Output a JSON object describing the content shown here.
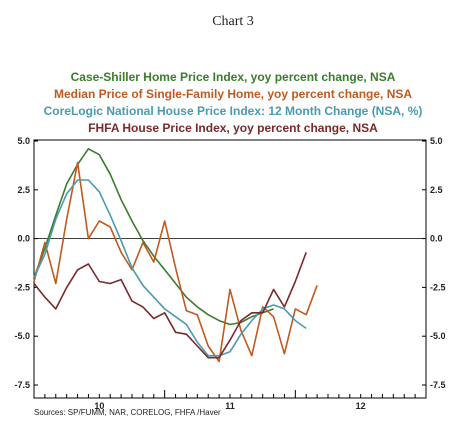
{
  "chart_title": "Chart 3",
  "source": "Sources: SP/FUMM, NAR, CORELOG, FHFA /Haver",
  "chart_data": {
    "type": "line",
    "title": "Chart 3",
    "xlabel": "",
    "ylabel": "",
    "x_tick_labels": [
      "10",
      "11",
      "12"
    ],
    "y_tick_labels": [
      "5.0",
      "2.5",
      "0.0",
      "-2.5",
      "-5.0",
      "-7.5"
    ],
    "y_ticks": [
      5.0,
      2.5,
      0.0,
      -2.5,
      -5.0,
      -7.5
    ],
    "ylim": [
      -7.5,
      5.0
    ],
    "xlim_months": [
      0,
      36
    ],
    "zero_line": true,
    "grid": false,
    "legend_placement": "top",
    "series": [
      {
        "name": "Case-Shiller Home Price Index, yoy percent change, NSA",
        "color": "#3a7d2c",
        "x": [
          0,
          1,
          2,
          3,
          4,
          5,
          6,
          7,
          8,
          9,
          10,
          11,
          12,
          13,
          14,
          15,
          16,
          17,
          18,
          19,
          20,
          21,
          22
        ],
        "values": [
          -2.0,
          -0.5,
          1.2,
          2.8,
          3.8,
          4.6,
          4.3,
          3.3,
          2.0,
          0.9,
          -0.1,
          -0.9,
          -1.6,
          -2.3,
          -3.0,
          -3.5,
          -3.9,
          -4.2,
          -4.4,
          -4.3,
          -4.0,
          -3.8,
          -3.6
        ]
      },
      {
        "name": "Median Price of Single-Family Home, yoy percent change, NSA",
        "color": "#c05a1e",
        "x": [
          0,
          1,
          2,
          3,
          4,
          5,
          6,
          7,
          8,
          9,
          10,
          11,
          12,
          13,
          14,
          15,
          16,
          17,
          18,
          19,
          20,
          21,
          22,
          23,
          24,
          25,
          26
        ],
        "values": [
          -2.2,
          -0.2,
          -2.3,
          1.0,
          3.9,
          0.0,
          0.9,
          0.6,
          -0.7,
          -1.6,
          -0.2,
          -1.2,
          0.9,
          -1.5,
          -3.7,
          -3.9,
          -5.5,
          -6.3,
          -2.6,
          -4.7,
          -6.0,
          -3.5,
          -4.0,
          -5.9,
          -3.6,
          -3.9,
          -2.4
        ]
      },
      {
        "name": "CoreLogic National House Price Index: 12 Month Change (NSA, %)",
        "color": "#4a9ab0",
        "x": [
          0,
          1,
          2,
          3,
          4,
          5,
          6,
          7,
          8,
          9,
          10,
          11,
          12,
          13,
          14,
          15,
          16,
          17,
          18,
          19,
          20,
          21,
          22,
          23,
          24,
          25
        ],
        "values": [
          -2.0,
          -0.8,
          1.0,
          2.3,
          3.0,
          3.0,
          2.4,
          1.2,
          -0.1,
          -1.5,
          -2.4,
          -3.0,
          -3.6,
          -4.0,
          -4.4,
          -5.3,
          -6.0,
          -6.0,
          -5.8,
          -4.9,
          -4.2,
          -3.6,
          -3.4,
          -3.6,
          -4.2,
          -4.6
        ]
      },
      {
        "name": "FHFA House Price Index, yoy percent change, NSA",
        "color": "#7a2a2a",
        "x": [
          0,
          1,
          2,
          3,
          4,
          5,
          6,
          7,
          8,
          9,
          10,
          11,
          12,
          13,
          14,
          15,
          16,
          17,
          18,
          19,
          20,
          21,
          22,
          23,
          24,
          25
        ],
        "values": [
          -2.3,
          -3.0,
          -3.6,
          -2.5,
          -1.6,
          -1.3,
          -2.2,
          -2.3,
          -2.1,
          -3.2,
          -3.5,
          -4.1,
          -3.8,
          -4.8,
          -4.9,
          -5.5,
          -6.1,
          -6.1,
          -5.2,
          -4.2,
          -3.8,
          -3.8,
          -2.6,
          -3.5,
          -2.2,
          -0.7
        ]
      }
    ]
  }
}
